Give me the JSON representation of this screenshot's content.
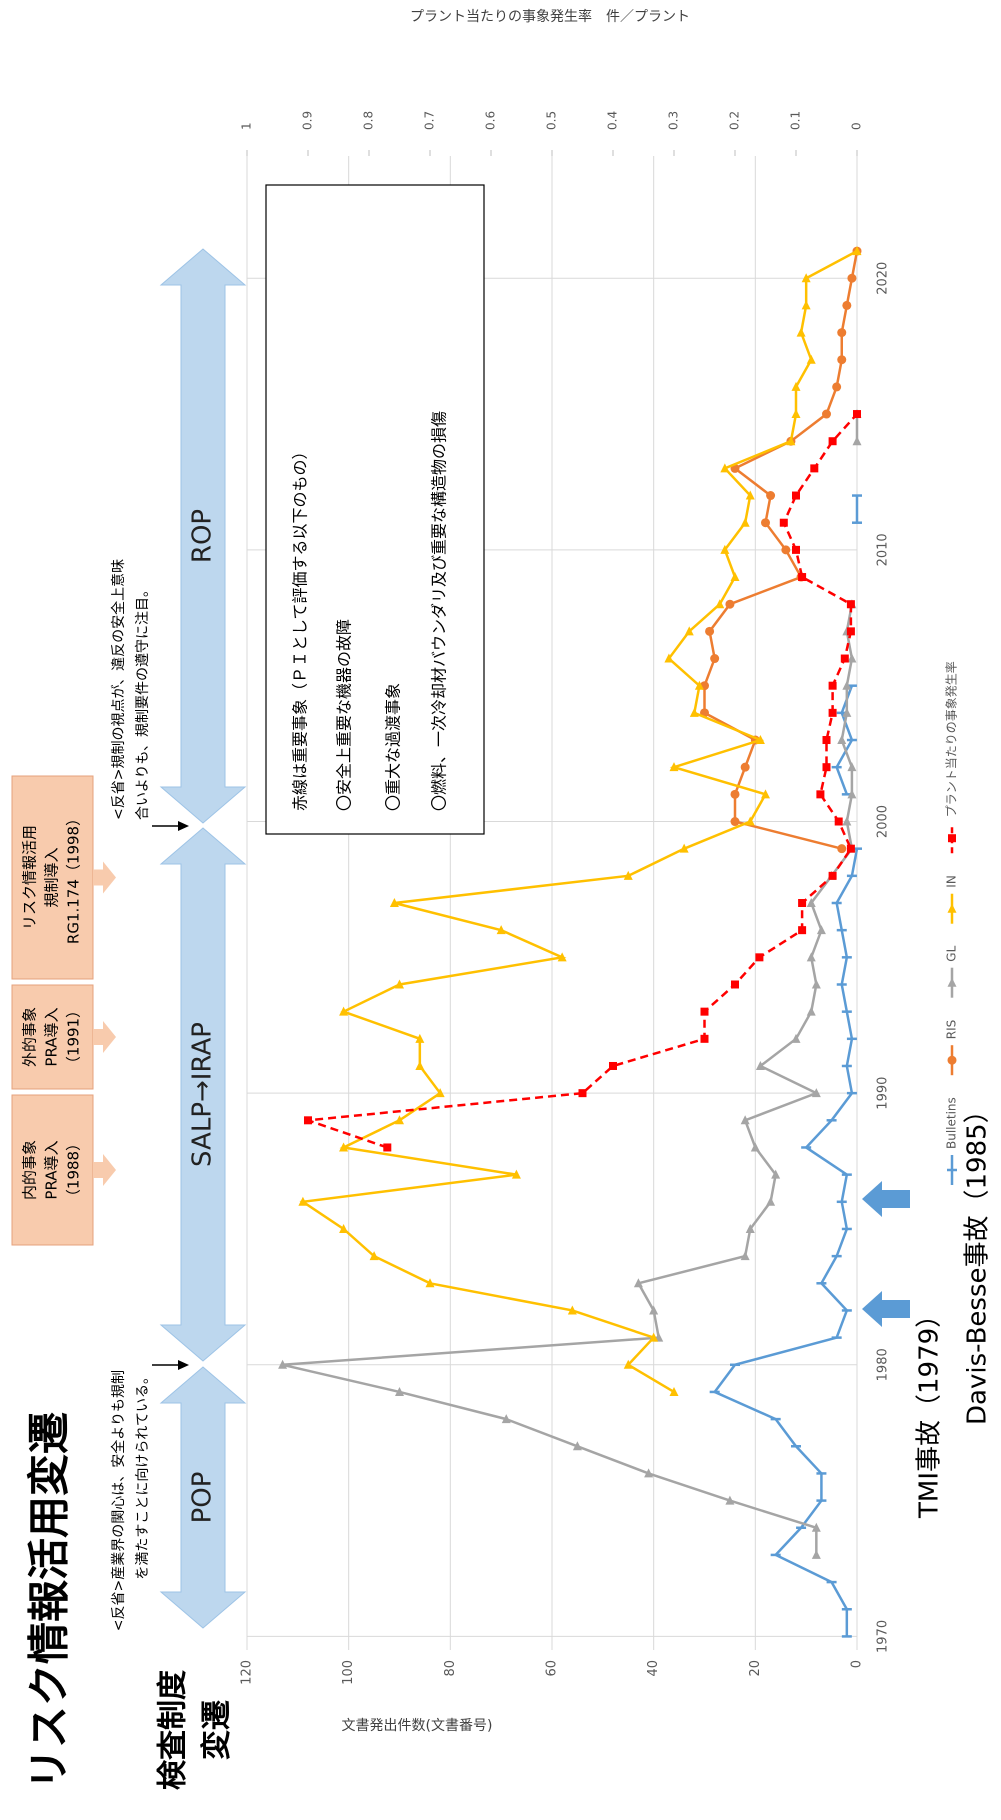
{
  "title": "リスク情報活用変遷",
  "inspection_heading": [
    "検査制度",
    "変遷"
  ],
  "regimes": [
    "POP",
    "SALP→IRAP",
    "ROP"
  ],
  "reflections": [
    [
      "<反省>産業界の関心は、安全よりも規制",
      "を満たすことに向けられている。"
    ],
    [
      "<反省>規制の視点が、違反の安全上意味",
      "合いよりも、規制要件の遵守に注目。"
    ]
  ],
  "pra_boxes": [
    [
      "内的事象",
      "PRA導入",
      "（1988）"
    ],
    [
      "外的事象",
      "PRA導入",
      "（1991）"
    ],
    [
      "リスク情報活用",
      "規制導入",
      "RG1.174（1998）"
    ]
  ],
  "note_box": [
    "赤線は重要事象（ＰＩとして評価する以下のもの）",
    "〇安全上重要な機器の故障",
    "〇重大な過渡事象",
    "〇燃料、一次冷却材バウンダリ及び重要な構造物の損傷"
  ],
  "events": [
    "TMI事故（1979）",
    "Davis-Besse事故（1985）"
  ],
  "chart_data": {
    "type": "line",
    "ylabel": "文書発出件数(文書番号)",
    "y2label": "プラント当たりの事象発生率　件／プラント",
    "x": [
      1970,
      1971,
      1972,
      1973,
      1974,
      1975,
      1976,
      1977,
      1978,
      1979,
      1980,
      1981,
      1982,
      1983,
      1984,
      1985,
      1986,
      1987,
      1988,
      1989,
      1990,
      1991,
      1992,
      1993,
      1994,
      1995,
      1996,
      1997,
      1998,
      1999,
      2000,
      2001,
      2002,
      2003,
      2004,
      2005,
      2006,
      2007,
      2008,
      2009,
      2010,
      2011,
      2012,
      2013,
      2014,
      2015,
      2016,
      2017,
      2018,
      2019,
      2020,
      2021
    ],
    "xlim": [
      1969.5,
      2024.5
    ],
    "xticks": [
      1970,
      1980,
      1990,
      2000,
      2010,
      2020
    ],
    "ylim": [
      0,
      120
    ],
    "yticks": [
      0,
      20,
      40,
      60,
      80,
      100,
      120
    ],
    "y2lim": [
      0,
      1
    ],
    "y2ticks": [
      0,
      0.1,
      0.2,
      0.3,
      0.4,
      0.5,
      0.6,
      0.7,
      0.8,
      0.9,
      1
    ],
    "grid": true,
    "series": [
      {
        "name": "Bulletins",
        "color": "#5b9bd5",
        "marker": "dash",
        "values": [
          2,
          2,
          5,
          16,
          11,
          7,
          7,
          12,
          16,
          28,
          24,
          4,
          2,
          7,
          4,
          2,
          3,
          2,
          10,
          5,
          1,
          2,
          1,
          2,
          3,
          2,
          3,
          4,
          1,
          0,
          null,
          2,
          4,
          1,
          3,
          1,
          null,
          null,
          null,
          null,
          null,
          0,
          0,
          null,
          null,
          null,
          null,
          null,
          null,
          null,
          null,
          null
        ]
      },
      {
        "name": "RIS",
        "color": "#ed7d31",
        "marker": "circle",
        "values": [
          null,
          null,
          null,
          null,
          null,
          null,
          null,
          null,
          null,
          null,
          null,
          null,
          null,
          null,
          null,
          null,
          null,
          null,
          null,
          null,
          null,
          null,
          null,
          null,
          null,
          null,
          null,
          null,
          null,
          3,
          24,
          24,
          22,
          20,
          30,
          30,
          28,
          29,
          25,
          11,
          14,
          18,
          17,
          24,
          13,
          6,
          4,
          3,
          3,
          2,
          1,
          0
        ]
      },
      {
        "name": "GL",
        "color": "#a5a5a5",
        "marker": "triangle",
        "values": [
          null,
          null,
          null,
          8,
          8,
          25,
          41,
          55,
          69,
          90,
          113,
          39,
          40,
          43,
          22,
          21,
          17,
          16,
          20,
          22,
          8,
          19,
          12,
          9,
          8,
          9,
          7,
          9,
          5,
          1,
          2,
          1,
          1,
          3,
          2,
          2,
          1,
          2,
          1,
          null,
          null,
          null,
          null,
          null,
          0,
          0,
          null,
          null,
          null,
          null,
          null,
          null
        ]
      },
      {
        "name": "IN",
        "color": "#ffc000",
        "marker": "triangle",
        "values": [
          null,
          null,
          null,
          null,
          null,
          null,
          null,
          null,
          null,
          36,
          45,
          40,
          56,
          84,
          95,
          101,
          109,
          67,
          101,
          90,
          82,
          86,
          86,
          101,
          90,
          58,
          70,
          91,
          45,
          34,
          21,
          18,
          36,
          19,
          32,
          31,
          37,
          33,
          27,
          24,
          26,
          22,
          21,
          26,
          13,
          12,
          12,
          9,
          11,
          10,
          10,
          0
        ]
      },
      {
        "name": "プラント当たりの事象発生率",
        "color": "#ff0000",
        "marker": "square",
        "dashed": true,
        "axis": "y2",
        "values": [
          null,
          null,
          null,
          null,
          null,
          null,
          null,
          null,
          null,
          null,
          null,
          null,
          null,
          null,
          null,
          null,
          null,
          null,
          0.77,
          0.9,
          0.45,
          0.4,
          0.25,
          0.25,
          0.2,
          0.16,
          0.09,
          0.09,
          0.04,
          0.01,
          0.03,
          0.06,
          0.05,
          0.05,
          0.04,
          0.04,
          0.02,
          0.01,
          0.01,
          0.09,
          0.1,
          0.12,
          0.1,
          0.07,
          0.04,
          0,
          null,
          null,
          null,
          null,
          null,
          null
        ]
      }
    ]
  }
}
